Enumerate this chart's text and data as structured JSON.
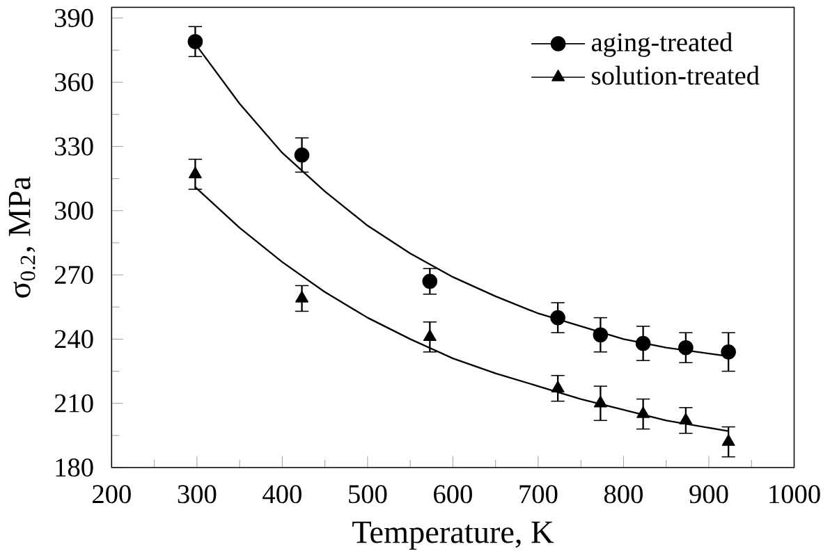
{
  "chart_data": {
    "type": "scatter",
    "xlabel": "Temperature, K",
    "ylabel": "σ$_{0.2}$, MPa",
    "xlim": [
      200,
      1000
    ],
    "ylim": [
      180,
      395
    ],
    "xticks": [
      200,
      300,
      400,
      500,
      600,
      700,
      800,
      900,
      1000
    ],
    "yticks": [
      180,
      210,
      240,
      270,
      300,
      330,
      360,
      390
    ],
    "legend": "top right",
    "grid": false,
    "series": [
      {
        "name": "aging-treated",
        "marker": "circle",
        "color": "#000000",
        "x": [
          298,
          423,
          573,
          723,
          773,
          823,
          873,
          923
        ],
        "values": [
          379,
          326,
          267,
          250,
          242,
          238,
          236,
          234
        ],
        "errors": [
          7,
          8,
          6,
          7,
          8,
          8,
          7,
          9
        ]
      },
      {
        "name": "solution-treated",
        "marker": "triangle",
        "color": "#000000",
        "x": [
          298,
          423,
          573,
          723,
          773,
          823,
          873,
          923
        ],
        "values": [
          317,
          259,
          241,
          217,
          210,
          205,
          202,
          192
        ],
        "errors": [
          7,
          6,
          7,
          6,
          8,
          7,
          6,
          7
        ]
      },
      {
        "type": "line",
        "marker": "none",
        "color": "#000000",
        "x": [
          298,
          350,
          400,
          450,
          500,
          550,
          600,
          650,
          700,
          750,
          800,
          850,
          923
        ],
        "values": [
          378,
          350,
          327,
          309,
          293,
          280,
          269,
          260,
          252,
          246,
          240,
          236,
          232
        ]
      },
      {
        "type": "line",
        "marker": "none",
        "color": "#000000",
        "x": [
          298,
          350,
          400,
          450,
          500,
          550,
          600,
          650,
          700,
          750,
          800,
          850,
          923
        ],
        "values": [
          311,
          292,
          276,
          262,
          250,
          240,
          231,
          224,
          218,
          212,
          207,
          202,
          197
        ]
      }
    ]
  }
}
